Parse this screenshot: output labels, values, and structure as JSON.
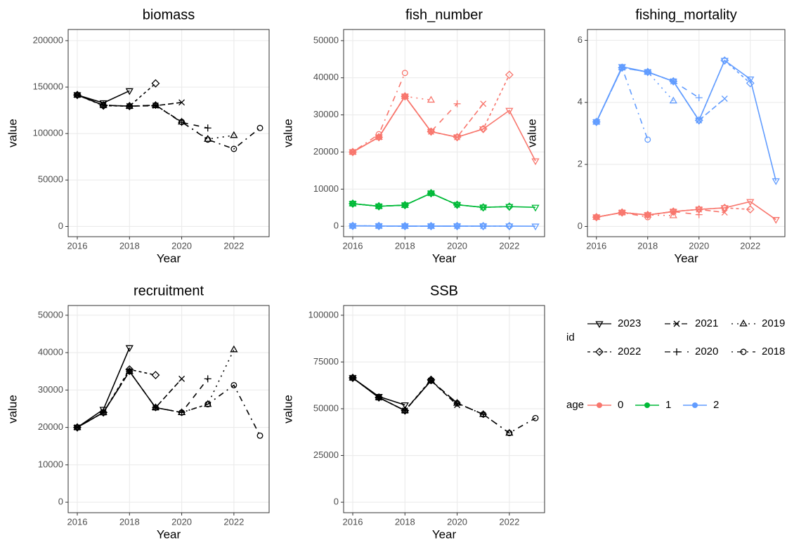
{
  "chart_data": [
    {
      "type": "line",
      "title": "biomass",
      "xlabel": "Year",
      "ylabel": "value",
      "color": "#000000",
      "xlim": [
        2015.65,
        2023.35
      ],
      "xticks": [
        2016,
        2018,
        2020,
        2022
      ],
      "ylim": [
        -11000,
        212000
      ],
      "yticks": [
        0,
        50000,
        100000,
        150000,
        200000
      ],
      "grid": true,
      "series": [
        {
          "id": "2023",
          "x": [
            2016,
            2017,
            2018
          ],
          "values": [
            141500,
            133000,
            146000
          ]
        },
        {
          "id": "2022",
          "x": [
            2016,
            2017,
            2018,
            2019
          ],
          "values": [
            141500,
            130000,
            129500,
            154000
          ]
        },
        {
          "id": "2021",
          "x": [
            2016,
            2017,
            2018,
            2019,
            2020
          ],
          "values": [
            141500,
            130500,
            129500,
            130000,
            133500
          ]
        },
        {
          "id": "2020",
          "x": [
            2016,
            2017,
            2018,
            2019,
            2020,
            2021
          ],
          "values": [
            141500,
            130500,
            129500,
            130500,
            112000,
            106000
          ]
        },
        {
          "id": "2019",
          "x": [
            2016,
            2017,
            2018,
            2019,
            2020,
            2021,
            2022
          ],
          "values": [
            141500,
            130500,
            129500,
            130500,
            112500,
            94000,
            98000
          ]
        },
        {
          "id": "2018",
          "x": [
            2016,
            2017,
            2018,
            2019,
            2020,
            2021,
            2022,
            2023
          ],
          "values": [
            141500,
            130500,
            129500,
            130500,
            112500,
            93500,
            83500,
            106000
          ]
        }
      ]
    },
    {
      "type": "line",
      "title": "fish_number",
      "xlabel": "Year",
      "ylabel": "value",
      "xlim": [
        2015.65,
        2023.35
      ],
      "xticks": [
        2016,
        2018,
        2020,
        2022
      ],
      "ylim": [
        -2800,
        53000
      ],
      "yticks": [
        0,
        10000,
        20000,
        30000,
        40000,
        50000
      ],
      "grid": true,
      "series": [
        {
          "id": "2023",
          "age": "0",
          "x": [
            2016,
            2017,
            2018,
            2019,
            2020,
            2021,
            2022,
            2023
          ],
          "values": [
            20000,
            24000,
            35000,
            25500,
            24000,
            26200,
            31200,
            17600
          ]
        },
        {
          "id": "2022",
          "age": "0",
          "x": [
            2016,
            2017,
            2018,
            2019,
            2020,
            2021,
            2022
          ],
          "values": [
            20000,
            24000,
            35000,
            25500,
            24000,
            26200,
            40800
          ]
        },
        {
          "id": "2021",
          "age": "0",
          "x": [
            2016,
            2017,
            2018,
            2019,
            2020,
            2021
          ],
          "values": [
            20000,
            24000,
            35000,
            25500,
            24000,
            33000
          ]
        },
        {
          "id": "2020",
          "age": "0",
          "x": [
            2016,
            2017,
            2018,
            2019,
            2020
          ],
          "values": [
            20000,
            24000,
            35000,
            25500,
            33000
          ]
        },
        {
          "id": "2019",
          "age": "0",
          "x": [
            2016,
            2017,
            2018,
            2019
          ],
          "values": [
            20000,
            24000,
            35000,
            34000
          ]
        },
        {
          "id": "2018",
          "age": "0",
          "x": [
            2016,
            2017,
            2018
          ],
          "values": [
            20000,
            24800,
            41300
          ]
        },
        {
          "id": "2023",
          "age": "1",
          "x": [
            2016,
            2017,
            2018,
            2019,
            2020,
            2021,
            2022,
            2023
          ],
          "values": [
            6100,
            5400,
            5700,
            8900,
            5800,
            5100,
            5300,
            5100
          ]
        },
        {
          "id": "2022",
          "age": "1",
          "x": [
            2016,
            2017,
            2018,
            2019,
            2020,
            2021,
            2022
          ],
          "values": [
            6100,
            5400,
            5700,
            8900,
            5800,
            5100,
            5300
          ]
        },
        {
          "id": "2021",
          "age": "1",
          "x": [
            2016,
            2017,
            2018,
            2019,
            2020,
            2021
          ],
          "values": [
            6100,
            5400,
            5700,
            8900,
            5800,
            5100
          ]
        },
        {
          "id": "2020",
          "age": "1",
          "x": [
            2016,
            2017,
            2018,
            2019,
            2020
          ],
          "values": [
            6100,
            5400,
            5700,
            8900,
            5800
          ]
        },
        {
          "id": "2019",
          "age": "1",
          "x": [
            2016,
            2017,
            2018,
            2019
          ],
          "values": [
            6100,
            5400,
            5700,
            8900
          ]
        },
        {
          "id": "2018",
          "age": "1",
          "x": [
            2016,
            2017,
            2018
          ],
          "values": [
            6100,
            5400,
            5700
          ]
        },
        {
          "id": "2023",
          "age": "2",
          "x": [
            2016,
            2017,
            2018,
            2019,
            2020,
            2021,
            2022,
            2023
          ],
          "values": [
            100,
            80,
            50,
            50,
            50,
            50,
            50,
            30
          ]
        },
        {
          "id": "2022",
          "age": "2",
          "x": [
            2016,
            2017,
            2018,
            2019,
            2020,
            2021,
            2022
          ],
          "values": [
            100,
            80,
            50,
            50,
            50,
            50,
            50
          ]
        },
        {
          "id": "2021",
          "age": "2",
          "x": [
            2016,
            2017,
            2018,
            2019,
            2020,
            2021
          ],
          "values": [
            100,
            80,
            50,
            50,
            50,
            50
          ]
        },
        {
          "id": "2020",
          "age": "2",
          "x": [
            2016,
            2017,
            2018,
            2019,
            2020
          ],
          "values": [
            100,
            80,
            50,
            50,
            50
          ]
        },
        {
          "id": "2019",
          "age": "2",
          "x": [
            2016,
            2017,
            2018,
            2019
          ],
          "values": [
            100,
            80,
            50,
            50
          ]
        },
        {
          "id": "2018",
          "age": "2",
          "x": [
            2016,
            2017,
            2018
          ],
          "values": [
            100,
            80,
            50
          ]
        }
      ]
    },
    {
      "type": "line",
      "title": "fishing_mortality",
      "xlabel": "Year",
      "ylabel": "value",
      "xlim": [
        2015.65,
        2023.35
      ],
      "xticks": [
        2016,
        2018,
        2020,
        2022
      ],
      "ylim": [
        -0.33,
        6.35
      ],
      "yticks": [
        0,
        2,
        4,
        6
      ],
      "grid": true,
      "series": [
        {
          "id": "2023",
          "age": "0",
          "x": [
            2016,
            2017,
            2018,
            2019,
            2020,
            2021,
            2022,
            2023
          ],
          "values": [
            0.3,
            0.45,
            0.37,
            0.48,
            0.55,
            0.6,
            0.8,
            0.22
          ]
        },
        {
          "id": "2022",
          "age": "0",
          "x": [
            2016,
            2017,
            2018,
            2019,
            2020,
            2021,
            2022
          ],
          "values": [
            0.3,
            0.45,
            0.37,
            0.48,
            0.55,
            0.6,
            0.55
          ]
        },
        {
          "id": "2021",
          "age": "0",
          "x": [
            2016,
            2017,
            2018,
            2019,
            2020,
            2021
          ],
          "values": [
            0.3,
            0.45,
            0.37,
            0.48,
            0.55,
            0.45
          ]
        },
        {
          "id": "2020",
          "age": "0",
          "x": [
            2016,
            2017,
            2018,
            2019,
            2020
          ],
          "values": [
            0.3,
            0.45,
            0.37,
            0.48,
            0.38
          ]
        },
        {
          "id": "2019",
          "age": "0",
          "x": [
            2016,
            2017,
            2018,
            2019
          ],
          "values": [
            0.3,
            0.45,
            0.37,
            0.35
          ]
        },
        {
          "id": "2018",
          "age": "0",
          "x": [
            2016,
            2017,
            2018
          ],
          "values": [
            0.3,
            0.45,
            0.3
          ]
        },
        {
          "id": "2023",
          "age": "2",
          "x": [
            2016,
            2017,
            2018,
            2019,
            2020,
            2021,
            2022,
            2023
          ],
          "values": [
            3.37,
            5.15,
            4.98,
            4.68,
            3.42,
            5.35,
            4.75,
            1.47
          ]
        },
        {
          "id": "2022",
          "age": "2",
          "x": [
            2016,
            2017,
            2018,
            2019,
            2020,
            2021,
            2022
          ],
          "values": [
            3.37,
            5.12,
            4.98,
            4.68,
            3.42,
            5.35,
            4.62
          ]
        },
        {
          "id": "2021",
          "age": "2",
          "x": [
            2016,
            2017,
            2018,
            2019,
            2020,
            2021
          ],
          "values": [
            3.37,
            5.12,
            4.98,
            4.68,
            3.42,
            4.12
          ]
        },
        {
          "id": "2020",
          "age": "2",
          "x": [
            2016,
            2017,
            2018,
            2019,
            2020
          ],
          "values": [
            3.37,
            5.12,
            4.98,
            4.68,
            4.15
          ]
        },
        {
          "id": "2019",
          "age": "2",
          "x": [
            2016,
            2017,
            2018,
            2019
          ],
          "values": [
            3.37,
            5.12,
            4.98,
            4.05
          ]
        },
        {
          "id": "2018",
          "age": "2",
          "x": [
            2016,
            2017,
            2018
          ],
          "values": [
            3.37,
            5.12,
            2.8
          ]
        }
      ]
    },
    {
      "type": "line",
      "title": "recruitment",
      "xlabel": "Year",
      "ylabel": "value",
      "color": "#000000",
      "xlim": [
        2015.65,
        2023.35
      ],
      "xticks": [
        2016,
        2018,
        2020,
        2022
      ],
      "ylim": [
        -2800,
        52600
      ],
      "yticks": [
        0,
        10000,
        20000,
        30000,
        40000,
        50000
      ],
      "grid": true,
      "series": [
        {
          "id": "2023",
          "x": [
            2016,
            2017,
            2018
          ],
          "values": [
            20000,
            24800,
            41300
          ]
        },
        {
          "id": "2022",
          "x": [
            2016,
            2017,
            2018,
            2019
          ],
          "values": [
            20000,
            24000,
            35500,
            34000
          ]
        },
        {
          "id": "2021",
          "x": [
            2016,
            2017,
            2018,
            2019,
            2020
          ],
          "values": [
            20000,
            24000,
            35000,
            25300,
            33000
          ]
        },
        {
          "id": "2020",
          "x": [
            2016,
            2017,
            2018,
            2019,
            2020,
            2021
          ],
          "values": [
            20000,
            24000,
            35000,
            25300,
            24000,
            33000
          ]
        },
        {
          "id": "2019",
          "x": [
            2016,
            2017,
            2018,
            2019,
            2020,
            2021,
            2022
          ],
          "values": [
            20000,
            24000,
            35000,
            25300,
            24000,
            26200,
            40800
          ]
        },
        {
          "id": "2018",
          "x": [
            2016,
            2017,
            2018,
            2019,
            2020,
            2021,
            2022,
            2023
          ],
          "values": [
            20000,
            24000,
            35000,
            25300,
            24000,
            26200,
            31300,
            17800
          ]
        }
      ]
    },
    {
      "type": "line",
      "title": "SSB",
      "xlabel": "Year",
      "ylabel": "value",
      "color": "#000000",
      "xlim": [
        2015.65,
        2023.35
      ],
      "xticks": [
        2016,
        2018,
        2020,
        2022
      ],
      "ylim": [
        -5600,
        105200
      ],
      "yticks": [
        0,
        25000,
        50000,
        75000,
        100000
      ],
      "grid": true,
      "series": [
        {
          "id": "2023",
          "x": [
            2016,
            2017,
            2018
          ],
          "values": [
            66500,
            56500,
            52000
          ]
        },
        {
          "id": "2022",
          "x": [
            2016,
            2017,
            2018,
            2019
          ],
          "values": [
            66500,
            56000,
            49000,
            65500
          ]
        },
        {
          "id": "2021",
          "x": [
            2016,
            2017,
            2018,
            2019,
            2020
          ],
          "values": [
            66500,
            56000,
            49000,
            65000,
            52000
          ]
        },
        {
          "id": "2020",
          "x": [
            2016,
            2017,
            2018,
            2019,
            2020,
            2021
          ],
          "values": [
            66500,
            56000,
            49000,
            65000,
            53000,
            47000
          ]
        },
        {
          "id": "2019",
          "x": [
            2016,
            2017,
            2018,
            2019,
            2020,
            2021,
            2022
          ],
          "values": [
            66500,
            56000,
            49000,
            65000,
            53000,
            47000,
            37000
          ]
        },
        {
          "id": "2018",
          "x": [
            2016,
            2017,
            2018,
            2019,
            2020,
            2021,
            2022,
            2023
          ],
          "values": [
            66500,
            56000,
            49000,
            65000,
            53000,
            47000,
            37000,
            45000
          ]
        }
      ]
    }
  ],
  "legend": {
    "id": {
      "title": "id",
      "entries": [
        {
          "name": "2023",
          "linetype": "solid",
          "shape": "down-triangle"
        },
        {
          "name": "2022",
          "linetype": "22",
          "shape": "diamond"
        },
        {
          "name": "2021",
          "linetype": "42",
          "shape": "cross"
        },
        {
          "name": "2020",
          "linetype": "44",
          "shape": "plus"
        },
        {
          "name": "2019",
          "linetype": "13",
          "shape": "up-triangle"
        },
        {
          "name": "2018",
          "linetype": "1343",
          "shape": "circle"
        }
      ]
    },
    "age": {
      "title": "age",
      "entries": [
        {
          "name": "0",
          "color": "#F8766D"
        },
        {
          "name": "1",
          "color": "#00BA38"
        },
        {
          "name": "2",
          "color": "#619CFF"
        }
      ]
    }
  }
}
